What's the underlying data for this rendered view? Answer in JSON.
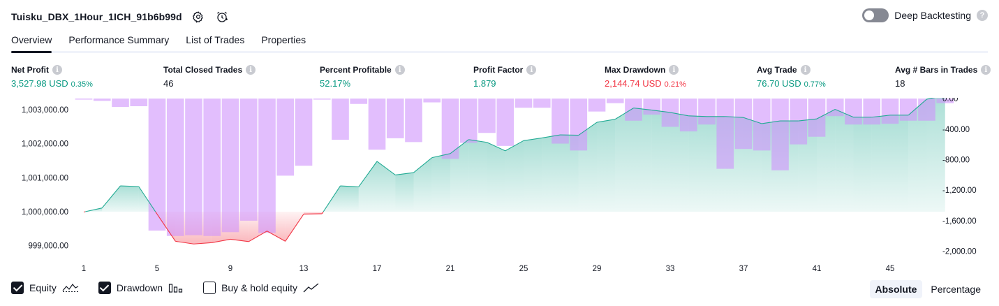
{
  "header": {
    "title": "Tuisku_DBX_1Hour_1ICH_91b6b99d",
    "deep_backtesting_label": "Deep Backtesting",
    "help_glyph": "?"
  },
  "tabs": [
    {
      "label": "Overview",
      "active": true
    },
    {
      "label": "Performance Summary",
      "active": false
    },
    {
      "label": "List of Trades",
      "active": false
    },
    {
      "label": "Properties",
      "active": false
    }
  ],
  "metrics": [
    {
      "label": "Net Profit",
      "value": "3,527.98 USD",
      "pct": "0.35%",
      "color": "#089981"
    },
    {
      "label": "Total Closed Trades",
      "value": "46",
      "pct": "",
      "color": "#131722"
    },
    {
      "label": "Percent Profitable",
      "value": "52.17%",
      "pct": "",
      "color": "#089981"
    },
    {
      "label": "Profit Factor",
      "value": "1.879",
      "pct": "",
      "color": "#089981"
    },
    {
      "label": "Max Drawdown",
      "value": "2,144.74 USD",
      "pct": "0.21%",
      "color": "#f23645"
    },
    {
      "label": "Avg Trade",
      "value": "76.70 USD",
      "pct": "0.77%",
      "color": "#089981"
    },
    {
      "label": "Avg # Bars in Trades",
      "value": "18",
      "pct": "",
      "color": "#131722"
    }
  ],
  "chart_data": {
    "type": "line+bar",
    "x_ticks": [
      1,
      5,
      9,
      13,
      17,
      21,
      25,
      29,
      33,
      37,
      41,
      45
    ],
    "equity_axis": {
      "ticks": [
        "1,003,000.00",
        "1,002,000.00",
        "1,001,000.00",
        "1,000,000.00",
        "999,000.00"
      ],
      "tick_values": [
        1003000,
        1002000,
        1001000,
        1000000,
        999000
      ],
      "baseline": 1000000,
      "range": [
        998500,
        1003350
      ]
    },
    "drawdown_axis": {
      "ticks": [
        "0.00",
        "-400.00",
        "-800.00",
        "-1,200.00",
        "-1,600.00",
        "-2,000.00"
      ],
      "tick_values": [
        0,
        -400,
        -800,
        -1200,
        -1600,
        -2000
      ],
      "range": [
        -2150,
        10
      ]
    },
    "equity": [
      999990,
      1000110,
      1000760,
      1000740,
      999930,
      999130,
      999050,
      999090,
      999190,
      999120,
      999430,
      999130,
      999930,
      999940,
      1000760,
      1000730,
      1001480,
      1001080,
      1001150,
      1001590,
      1001710,
      1002120,
      1002040,
      1001790,
      1002090,
      1002170,
      1002260,
      1002250,
      1002630,
      1002720,
      1003050,
      1002990,
      1002920,
      1002820,
      1002800,
      1002800,
      1002770,
      1002590,
      1002670,
      1002670,
      1002730,
      1003010,
      1002780,
      1002780,
      1002840,
      1002840,
      1003310,
      1003420
    ],
    "drawdown": [
      0,
      -30,
      -110,
      -100,
      -1730,
      -1800,
      -1790,
      -1800,
      -1750,
      -1600,
      -1760,
      -1010,
      -880,
      -10,
      -540,
      -70,
      -670,
      -520,
      -570,
      -50,
      -790,
      -580,
      -450,
      -620,
      -120,
      -120,
      -590,
      -680,
      -170,
      -60,
      -290,
      -210,
      -370,
      -430,
      -340,
      -920,
      -660,
      -680,
      -940,
      -600,
      -500,
      -230,
      -340,
      -340,
      -330,
      -290,
      -290,
      -60
    ],
    "series": [
      {
        "name": "Equity",
        "checked": true
      },
      {
        "name": "Drawdown",
        "checked": true
      },
      {
        "name": "Buy & hold equity",
        "checked": false
      }
    ]
  },
  "modes": [
    {
      "label": "Absolute",
      "active": true
    },
    {
      "label": "Percentage",
      "active": false
    }
  ],
  "colors": {
    "equity_line": "#22ab94",
    "equity_fill": "#22ab94",
    "loss_line": "#f23645",
    "drawdown_bar": "#ce93fc"
  }
}
